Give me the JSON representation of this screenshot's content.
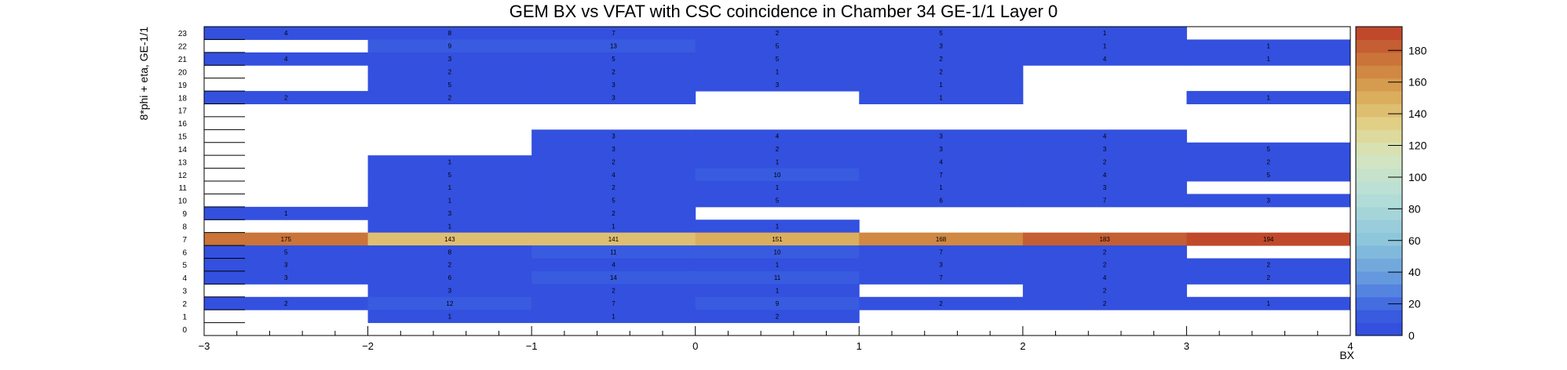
{
  "chart_data": {
    "type": "heatmap",
    "title": "GEM BX vs VFAT with CSC coincidence in Chamber 34 GE-1/1 Layer 0",
    "xlabel": "BX",
    "ylabel": "8*phi + eta, GE-1/1",
    "xlim": [
      -3,
      4
    ],
    "ylim": [
      0,
      24
    ],
    "x_ticks": [
      "−3",
      "−2",
      "−1",
      "0",
      "1",
      "2",
      "3",
      "4"
    ],
    "y_ticks": [
      "0",
      "1",
      "2",
      "3",
      "4",
      "5",
      "6",
      "7",
      "8",
      "9",
      "10",
      "11",
      "12",
      "13",
      "14",
      "15",
      "16",
      "17",
      "18",
      "19",
      "20",
      "21",
      "22",
      "23"
    ],
    "colorbar": {
      "min": 0,
      "max": 195,
      "ticks": [
        "0",
        "20",
        "40",
        "60",
        "80",
        "100",
        "120",
        "140",
        "160",
        "180"
      ]
    },
    "x_bins": [
      "-3",
      "-2",
      "-1",
      "0",
      "1",
      "2",
      "3"
    ],
    "cells": [
      {
        "x": 0,
        "y": 23,
        "v": 4
      },
      {
        "x": 1,
        "y": 23,
        "v": 8
      },
      {
        "x": 2,
        "y": 23,
        "v": 7
      },
      {
        "x": 3,
        "y": 23,
        "v": 2
      },
      {
        "x": 4,
        "y": 23,
        "v": 5
      },
      {
        "x": 5,
        "y": 23,
        "v": 1
      },
      {
        "x": 1,
        "y": 22,
        "v": 9
      },
      {
        "x": 2,
        "y": 22,
        "v": 13
      },
      {
        "x": 3,
        "y": 22,
        "v": 5
      },
      {
        "x": 4,
        "y": 22,
        "v": 3
      },
      {
        "x": 5,
        "y": 22,
        "v": 1
      },
      {
        "x": 6,
        "y": 22,
        "v": 1
      },
      {
        "x": 0,
        "y": 21,
        "v": 4
      },
      {
        "x": 1,
        "y": 21,
        "v": 3
      },
      {
        "x": 2,
        "y": 21,
        "v": 5
      },
      {
        "x": 3,
        "y": 21,
        "v": 5
      },
      {
        "x": 4,
        "y": 21,
        "v": 2
      },
      {
        "x": 5,
        "y": 21,
        "v": 4
      },
      {
        "x": 6,
        "y": 21,
        "v": 1
      },
      {
        "x": 1,
        "y": 20,
        "v": 2
      },
      {
        "x": 2,
        "y": 20,
        "v": 2
      },
      {
        "x": 3,
        "y": 20,
        "v": 1
      },
      {
        "x": 4,
        "y": 20,
        "v": 2
      },
      {
        "x": 1,
        "y": 19,
        "v": 5
      },
      {
        "x": 2,
        "y": 19,
        "v": 3
      },
      {
        "x": 3,
        "y": 19,
        "v": 3
      },
      {
        "x": 4,
        "y": 19,
        "v": 1
      },
      {
        "x": 0,
        "y": 18,
        "v": 2
      },
      {
        "x": 1,
        "y": 18,
        "v": 2
      },
      {
        "x": 2,
        "y": 18,
        "v": 3
      },
      {
        "x": 4,
        "y": 18,
        "v": 1
      },
      {
        "x": 6,
        "y": 18,
        "v": 1
      },
      {
        "x": 2,
        "y": 15,
        "v": 3
      },
      {
        "x": 3,
        "y": 15,
        "v": 4
      },
      {
        "x": 4,
        "y": 15,
        "v": 3
      },
      {
        "x": 5,
        "y": 15,
        "v": 4
      },
      {
        "x": 2,
        "y": 14,
        "v": 3
      },
      {
        "x": 3,
        "y": 14,
        "v": 2
      },
      {
        "x": 4,
        "y": 14,
        "v": 3
      },
      {
        "x": 5,
        "y": 14,
        "v": 3
      },
      {
        "x": 6,
        "y": 14,
        "v": 5
      },
      {
        "x": 1,
        "y": 13,
        "v": 1
      },
      {
        "x": 2,
        "y": 13,
        "v": 2
      },
      {
        "x": 3,
        "y": 13,
        "v": 1
      },
      {
        "x": 4,
        "y": 13,
        "v": 4
      },
      {
        "x": 5,
        "y": 13,
        "v": 2
      },
      {
        "x": 6,
        "y": 13,
        "v": 2
      },
      {
        "x": 1,
        "y": 12,
        "v": 5
      },
      {
        "x": 2,
        "y": 12,
        "v": 4
      },
      {
        "x": 3,
        "y": 12,
        "v": 10
      },
      {
        "x": 4,
        "y": 12,
        "v": 7
      },
      {
        "x": 5,
        "y": 12,
        "v": 4
      },
      {
        "x": 6,
        "y": 12,
        "v": 5
      },
      {
        "x": 1,
        "y": 11,
        "v": 1
      },
      {
        "x": 2,
        "y": 11,
        "v": 2
      },
      {
        "x": 3,
        "y": 11,
        "v": 1
      },
      {
        "x": 4,
        "y": 11,
        "v": 1
      },
      {
        "x": 5,
        "y": 11,
        "v": 3
      },
      {
        "x": 1,
        "y": 10,
        "v": 1
      },
      {
        "x": 2,
        "y": 10,
        "v": 5
      },
      {
        "x": 3,
        "y": 10,
        "v": 5
      },
      {
        "x": 4,
        "y": 10,
        "v": 6
      },
      {
        "x": 5,
        "y": 10,
        "v": 7
      },
      {
        "x": 6,
        "y": 10,
        "v": 3
      },
      {
        "x": 0,
        "y": 9,
        "v": 1
      },
      {
        "x": 1,
        "y": 9,
        "v": 3
      },
      {
        "x": 2,
        "y": 9,
        "v": 2
      },
      {
        "x": 1,
        "y": 8,
        "v": 1
      },
      {
        "x": 2,
        "y": 8,
        "v": 1
      },
      {
        "x": 3,
        "y": 8,
        "v": 1
      },
      {
        "x": 0,
        "y": 7,
        "v": 175
      },
      {
        "x": 1,
        "y": 7,
        "v": 143
      },
      {
        "x": 2,
        "y": 7,
        "v": 141
      },
      {
        "x": 3,
        "y": 7,
        "v": 151
      },
      {
        "x": 4,
        "y": 7,
        "v": 168
      },
      {
        "x": 5,
        "y": 7,
        "v": 183
      },
      {
        "x": 6,
        "y": 7,
        "v": 194
      },
      {
        "x": 0,
        "y": 6,
        "v": 5
      },
      {
        "x": 1,
        "y": 6,
        "v": 8
      },
      {
        "x": 2,
        "y": 6,
        "v": 11
      },
      {
        "x": 3,
        "y": 6,
        "v": 10
      },
      {
        "x": 4,
        "y": 6,
        "v": 7
      },
      {
        "x": 5,
        "y": 6,
        "v": 2
      },
      {
        "x": 0,
        "y": 5,
        "v": 3
      },
      {
        "x": 1,
        "y": 5,
        "v": 2
      },
      {
        "x": 2,
        "y": 5,
        "v": 4
      },
      {
        "x": 3,
        "y": 5,
        "v": 1
      },
      {
        "x": 4,
        "y": 5,
        "v": 3
      },
      {
        "x": 5,
        "y": 5,
        "v": 2
      },
      {
        "x": 6,
        "y": 5,
        "v": 2
      },
      {
        "x": 0,
        "y": 4,
        "v": 3
      },
      {
        "x": 1,
        "y": 4,
        "v": 6
      },
      {
        "x": 2,
        "y": 4,
        "v": 14
      },
      {
        "x": 3,
        "y": 4,
        "v": 11
      },
      {
        "x": 4,
        "y": 4,
        "v": 7
      },
      {
        "x": 5,
        "y": 4,
        "v": 4
      },
      {
        "x": 6,
        "y": 4,
        "v": 2
      },
      {
        "x": 1,
        "y": 3,
        "v": 3
      },
      {
        "x": 2,
        "y": 3,
        "v": 2
      },
      {
        "x": 3,
        "y": 3,
        "v": 1
      },
      {
        "x": 5,
        "y": 3,
        "v": 2
      },
      {
        "x": 0,
        "y": 2,
        "v": 2
      },
      {
        "x": 1,
        "y": 2,
        "v": 12
      },
      {
        "x": 2,
        "y": 2,
        "v": 7
      },
      {
        "x": 3,
        "y": 2,
        "v": 9
      },
      {
        "x": 4,
        "y": 2,
        "v": 2
      },
      {
        "x": 5,
        "y": 2,
        "v": 2
      },
      {
        "x": 6,
        "y": 2,
        "v": 1
      },
      {
        "x": 1,
        "y": 1,
        "v": 1
      },
      {
        "x": 2,
        "y": 1,
        "v": 1
      },
      {
        "x": 3,
        "y": 1,
        "v": 2
      }
    ]
  }
}
